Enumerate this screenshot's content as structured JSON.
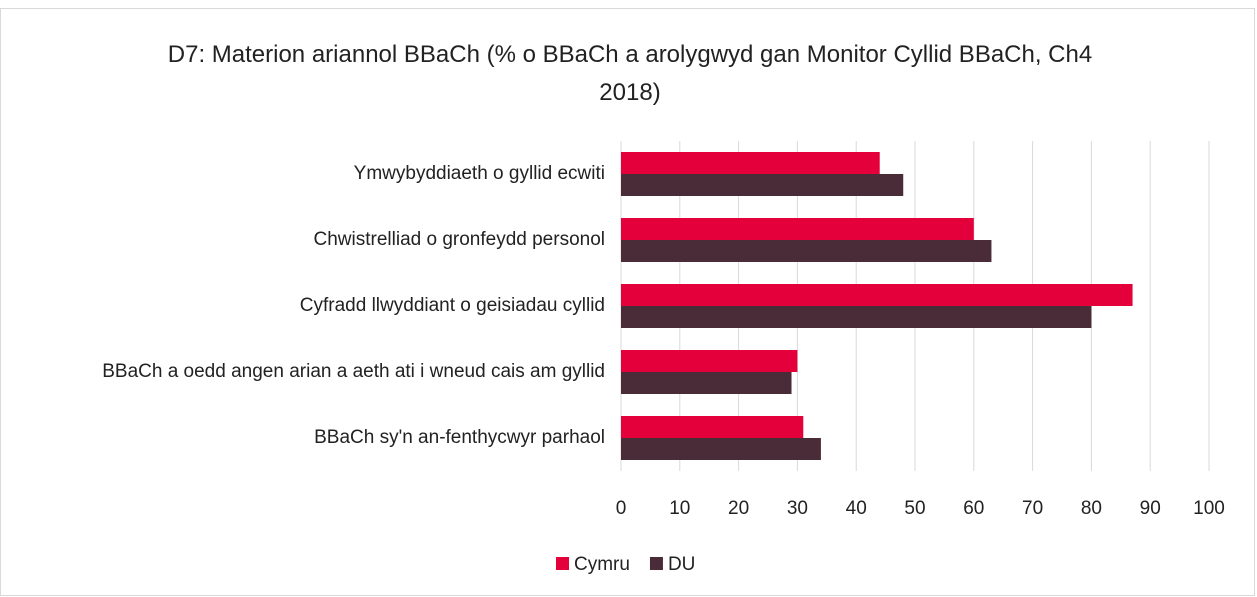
{
  "chart_data": {
    "type": "hbar",
    "title": "D7: Materion ariannol BBaCh (% o BBaCh a arolygwyd gan Monitor Cyllid BBaCh, Ch4 2018)",
    "categories": [
      "Ymwybyddiaeth o gyllid ecwiti",
      "Chwistrelliad o gronfeydd personol",
      "Cyfradd llwyddiant o geisiadau cyllid",
      "BBaCh a oedd angen arian a aeth ati i wneud cais am gyllid",
      "BBaCh sy'n an-fenthycwyr parhaol"
    ],
    "series": [
      {
        "name": "Cymru",
        "color": "#e4003b",
        "values": [
          44,
          60,
          87,
          30,
          31
        ]
      },
      {
        "name": "DU",
        "color": "#4a2c38",
        "values": [
          48,
          63,
          80,
          29,
          34
        ]
      }
    ],
    "xlim": [
      0,
      100
    ],
    "xticks": [
      0,
      10,
      20,
      30,
      40,
      50,
      60,
      70,
      80,
      90,
      100
    ],
    "grid": true,
    "legend": "bottom"
  }
}
